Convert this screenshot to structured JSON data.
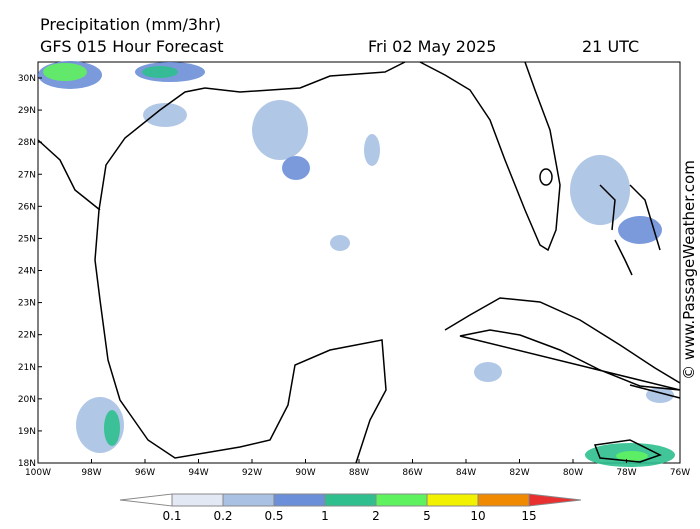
{
  "header": {
    "title": "Precipitation (mm/3hr)",
    "subtitle": "GFS 015 Hour Forecast",
    "date": "Fri 02 May 2025",
    "time": "21 UTC"
  },
  "map": {
    "lat_labels": [
      "30N",
      "29N",
      "28N",
      "27N",
      "26N",
      "25N",
      "24N",
      "23N",
      "22N",
      "21N",
      "20N",
      "19N",
      "18N"
    ],
    "lon_labels": [
      "100W",
      "98W",
      "96W",
      "94W",
      "92W",
      "90W",
      "88W",
      "86W",
      "84W",
      "82W",
      "80W",
      "78W",
      "76W"
    ]
  },
  "colorbar": {
    "ticks": [
      0.1,
      0.2,
      0.5,
      1,
      2,
      5,
      10,
      15
    ],
    "colors": [
      "#ffffff",
      "#e2e9f5",
      "#a9c1e3",
      "#6b8fd8",
      "#2fbf8f",
      "#5ff25f",
      "#f2f200",
      "#f08a00",
      "#e83030"
    ]
  },
  "watermark": "© www.PassageWeather.com"
}
